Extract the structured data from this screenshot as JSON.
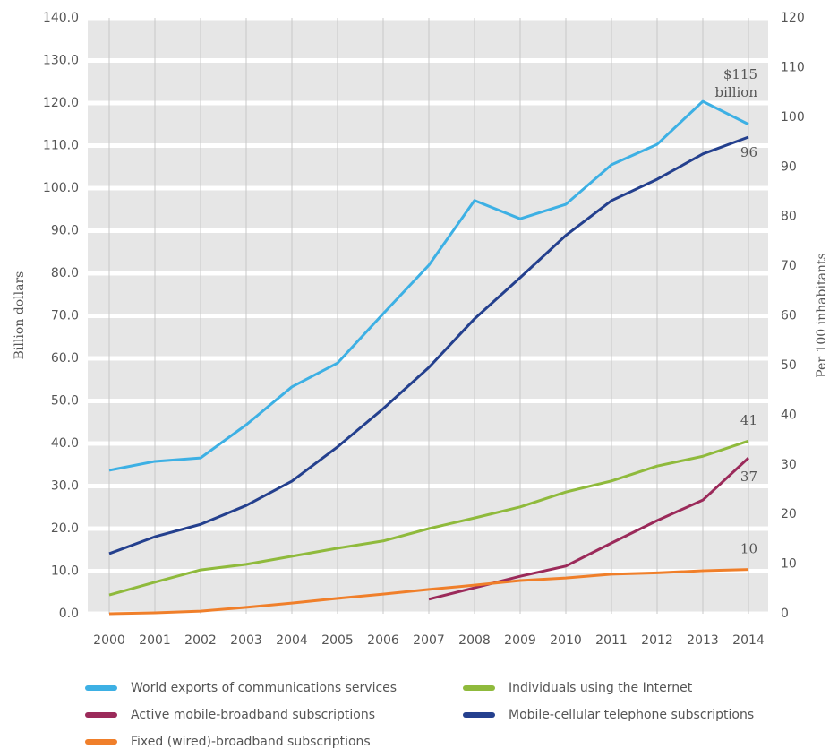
{
  "chart_data": {
    "type": "line",
    "ylabel": "Billion dollars",
    "y2label": "Per 100 inhabitants",
    "grid": true,
    "x": [
      "2000",
      "2001",
      "2002",
      "2003",
      "2004",
      "2005",
      "2006",
      "2007",
      "2008",
      "2009",
      "2010",
      "2011",
      "2012",
      "2013",
      "2014"
    ],
    "ylim": [
      0,
      140
    ],
    "yticks": [
      {
        "value": 0,
        "label": "0.0"
      },
      {
        "value": 10,
        "label": "10.0"
      },
      {
        "value": 20,
        "label": "20.0"
      },
      {
        "value": 30,
        "label": "30.0"
      },
      {
        "value": 40,
        "label": "40.0"
      },
      {
        "value": 50,
        "label": "50.0"
      },
      {
        "value": 60,
        "label": "60.0"
      },
      {
        "value": 70,
        "label": "70.0"
      },
      {
        "value": 80,
        "label": "80.0"
      },
      {
        "value": 90,
        "label": "90.0"
      },
      {
        "value": 100,
        "label": "100.0"
      },
      {
        "value": 110,
        "label": "110.0"
      },
      {
        "value": 120,
        "label": "120.0"
      },
      {
        "value": 130,
        "label": "130.0"
      },
      {
        "value": 140,
        "label": "140.0"
      }
    ],
    "y2lim": [
      0,
      120
    ],
    "y2ticks": [
      0,
      10,
      20,
      30,
      40,
      50,
      60,
      70,
      80,
      90,
      100,
      110,
      120
    ],
    "series": [
      {
        "name": "World exports of communications services",
        "color": "#3db0e4",
        "values": [
          33.7,
          35.8,
          36.6,
          44.4,
          53.3,
          58.9,
          70.5,
          81.9,
          97.1,
          92.8,
          96.2,
          105.5,
          110.3,
          120.4,
          115
        ],
        "end_label": [
          "$115",
          "billion"
        ]
      },
      {
        "name": "Individuals using the Internet",
        "color": "#8fba3c",
        "values": [
          4.4,
          7.4,
          10.3,
          11.6,
          13.5,
          15.4,
          17.1,
          20.0,
          22.5,
          25.1,
          28.6,
          31.2,
          34.7,
          37.0,
          40.6
        ],
        "end_label": [
          "41"
        ]
      },
      {
        "name": "Active mobile-broadband subscriptions",
        "color": "#9b2a5a",
        "values": [
          null,
          null,
          null,
          null,
          null,
          null,
          null,
          3.4,
          6.1,
          8.8,
          11.2,
          16.6,
          21.9,
          26.7,
          36.6
        ],
        "end_label": [
          "37"
        ]
      },
      {
        "name": "Mobile-cellular telephone subscriptions",
        "color": "#24408e",
        "axis": "y2",
        "values": [
          12.1,
          15.5,
          18.0,
          21.8,
          26.7,
          33.6,
          41.3,
          49.6,
          59.4,
          67.7,
          76.2,
          83.2,
          87.5,
          92.6,
          96
        ],
        "end_label": [
          "96"
        ]
      },
      {
        "name": "Fixed (wired)-broadband subscriptions",
        "color": "#f07f2a",
        "values": [
          0,
          0.2,
          0.6,
          1.5,
          2.5,
          3.6,
          4.6,
          5.7,
          6.7,
          7.8,
          8.4,
          9.3,
          9.6,
          10.1,
          10.4
        ],
        "end_label": [
          "10"
        ]
      }
    ]
  }
}
